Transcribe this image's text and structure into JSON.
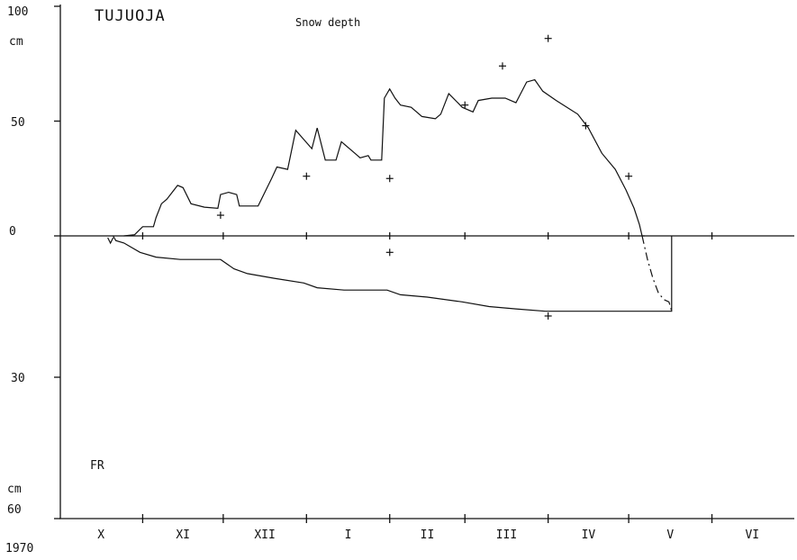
{
  "chart_data": {
    "type": "line",
    "title": "TUJUOJA",
    "subtitle": "Snow depth",
    "year_label": "1970",
    "upper_unit_label": "cm",
    "lower_unit_label": "cm",
    "lower_panel_label": "FR",
    "upper_axis": {
      "range": [
        0,
        100
      ],
      "tick_labels": [
        "0",
        "50",
        "100"
      ]
    },
    "lower_axis": {
      "range": [
        0,
        60
      ],
      "tick_labels": [
        "30",
        "60"
      ],
      "direction": "downward"
    },
    "month_labels": [
      "X",
      "XI",
      "XII",
      "I",
      "II",
      "III",
      "IV",
      "V",
      "VI"
    ],
    "month_starts": [
      "1969-10-01",
      "1969-11-01",
      "1969-12-01",
      "1970-01-01",
      "1970-02-01",
      "1970-03-01",
      "1970-04-01",
      "1970-05-01",
      "1970-06-01",
      "1970-07-01"
    ],
    "series": [
      {
        "key": "snow_depth",
        "unit": "cm",
        "points": [
          [
            "1969-10-25",
            0
          ],
          [
            "1969-10-29",
            0.5
          ],
          [
            "1969-11-01",
            4
          ],
          [
            "1969-11-05",
            4
          ],
          [
            "1969-11-06",
            8
          ],
          [
            "1969-11-08",
            14
          ],
          [
            "1969-11-10",
            16
          ],
          [
            "1969-11-12",
            19
          ],
          [
            "1969-11-14",
            22
          ],
          [
            "1969-11-16",
            21
          ],
          [
            "1969-11-19",
            14
          ],
          [
            "1969-11-24",
            12.5
          ],
          [
            "1969-11-29",
            12
          ],
          [
            "1969-11-30",
            18
          ],
          [
            "1969-12-03",
            19
          ],
          [
            "1969-12-06",
            18
          ],
          [
            "1969-12-07",
            13
          ],
          [
            "1969-12-14",
            13
          ],
          [
            "1969-12-19",
            25
          ],
          [
            "1969-12-21",
            30
          ],
          [
            "1969-12-25",
            29
          ],
          [
            "1969-12-28",
            46
          ],
          [
            "1969-12-31",
            42
          ],
          [
            "1970-01-03",
            38
          ],
          [
            "1970-01-05",
            47
          ],
          [
            "1970-01-08",
            33
          ],
          [
            "1970-01-12",
            33
          ],
          [
            "1970-01-14",
            41
          ],
          [
            "1970-01-19",
            36
          ],
          [
            "1970-01-21",
            34
          ],
          [
            "1970-01-24",
            35
          ],
          [
            "1970-01-25",
            33
          ],
          [
            "1970-01-29",
            33
          ],
          [
            "1970-01-30",
            60
          ],
          [
            "1970-02-01",
            64
          ],
          [
            "1970-02-03",
            60
          ],
          [
            "1970-02-05",
            57
          ],
          [
            "1970-02-09",
            56
          ],
          [
            "1970-02-13",
            52
          ],
          [
            "1970-02-18",
            51
          ],
          [
            "1970-02-20",
            53
          ],
          [
            "1970-02-23",
            62
          ],
          [
            "1970-02-28",
            56
          ],
          [
            "1970-03-04",
            54
          ],
          [
            "1970-03-06",
            59
          ],
          [
            "1970-03-11",
            60
          ],
          [
            "1970-03-16",
            60
          ],
          [
            "1970-03-20",
            58
          ],
          [
            "1970-03-24",
            67
          ],
          [
            "1970-03-27",
            68
          ],
          [
            "1970-03-30",
            63
          ],
          [
            "1970-04-04",
            59
          ],
          [
            "1970-04-12",
            53
          ],
          [
            "1970-04-16",
            47
          ],
          [
            "1970-04-21",
            36
          ],
          [
            "1970-04-26",
            29
          ],
          [
            "1970-04-30",
            20
          ],
          [
            "1970-05-03",
            12
          ],
          [
            "1970-05-05",
            5
          ],
          [
            "1970-05-06",
            0
          ]
        ]
      },
      {
        "key": "snow_depth_extrapolated",
        "unit": "cm",
        "points": [
          [
            "1970-05-06",
            0
          ],
          [
            "1970-05-07",
            0
          ]
        ]
      },
      {
        "key": "frost_depth",
        "unit": "cm",
        "points": [
          [
            "1969-10-21",
            0
          ],
          [
            "1969-10-22",
            1
          ],
          [
            "1969-10-25",
            1.5
          ],
          [
            "1969-10-31",
            3.5
          ],
          [
            "1969-11-06",
            4.5
          ],
          [
            "1969-11-15",
            5
          ],
          [
            "1969-11-30",
            5
          ],
          [
            "1969-12-05",
            7
          ],
          [
            "1969-12-10",
            8
          ],
          [
            "1969-12-20",
            9
          ],
          [
            "1969-12-31",
            10
          ],
          [
            "1970-01-05",
            11
          ],
          [
            "1970-01-15",
            11.5
          ],
          [
            "1970-01-31",
            11.5
          ],
          [
            "1970-02-05",
            12.5
          ],
          [
            "1970-02-15",
            13
          ],
          [
            "1970-02-28",
            14
          ],
          [
            "1970-03-10",
            15
          ],
          [
            "1970-03-20",
            15.5
          ],
          [
            "1970-03-31",
            16
          ],
          [
            "1970-04-15",
            16
          ],
          [
            "1970-05-01",
            16
          ],
          [
            "1970-05-17",
            16
          ],
          [
            "1970-05-17",
            0
          ]
        ]
      },
      {
        "key": "frost_depth_dashed",
        "unit": "cm",
        "points": [
          [
            "1970-05-06",
            0
          ],
          [
            "1970-05-08",
            5
          ],
          [
            "1970-05-10",
            9
          ],
          [
            "1970-05-12",
            12
          ],
          [
            "1970-05-14",
            13.5
          ],
          [
            "1970-05-16",
            14
          ],
          [
            "1970-05-17",
            16
          ]
        ]
      }
    ],
    "observations": {
      "snow_depth": [
        [
          "1969-11-30",
          9
        ],
        [
          "1970-01-01",
          26
        ],
        [
          "1970-02-01",
          25
        ],
        [
          "1970-03-01",
          57
        ],
        [
          "1970-03-15",
          74
        ],
        [
          "1970-04-01",
          86
        ],
        [
          "1970-04-15",
          48
        ],
        [
          "1970-05-01",
          26
        ]
      ],
      "frost_depth": [
        [
          "1970-02-01",
          3.5
        ],
        [
          "1970-04-01",
          17
        ]
      ],
      "zero_mark_date": "1969-10-20"
    }
  }
}
